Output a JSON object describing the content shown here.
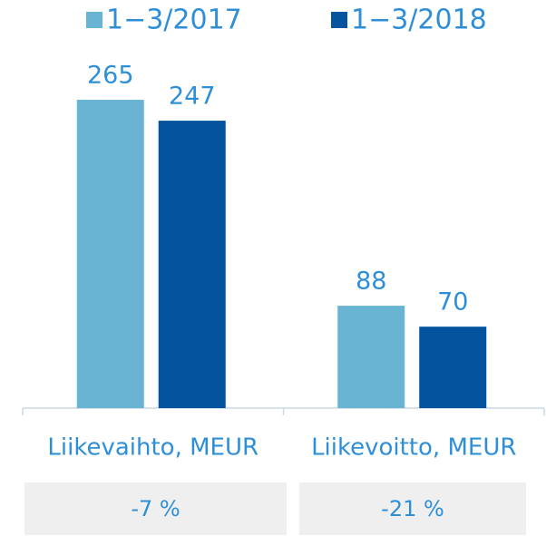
{
  "chart_data": {
    "type": "bar",
    "categories": [
      "Liikevaihto, MEUR",
      "Liikevoitto, MEUR"
    ],
    "series": [
      {
        "name": "1−3/2017",
        "color": "#6ab4d3",
        "values": [
          265,
          88
        ]
      },
      {
        "name": "1−3/2018",
        "color": "#03539f",
        "values": [
          247,
          70
        ]
      }
    ],
    "legend": "top",
    "annotations": [
      "-7 %",
      "-21 %"
    ]
  }
}
